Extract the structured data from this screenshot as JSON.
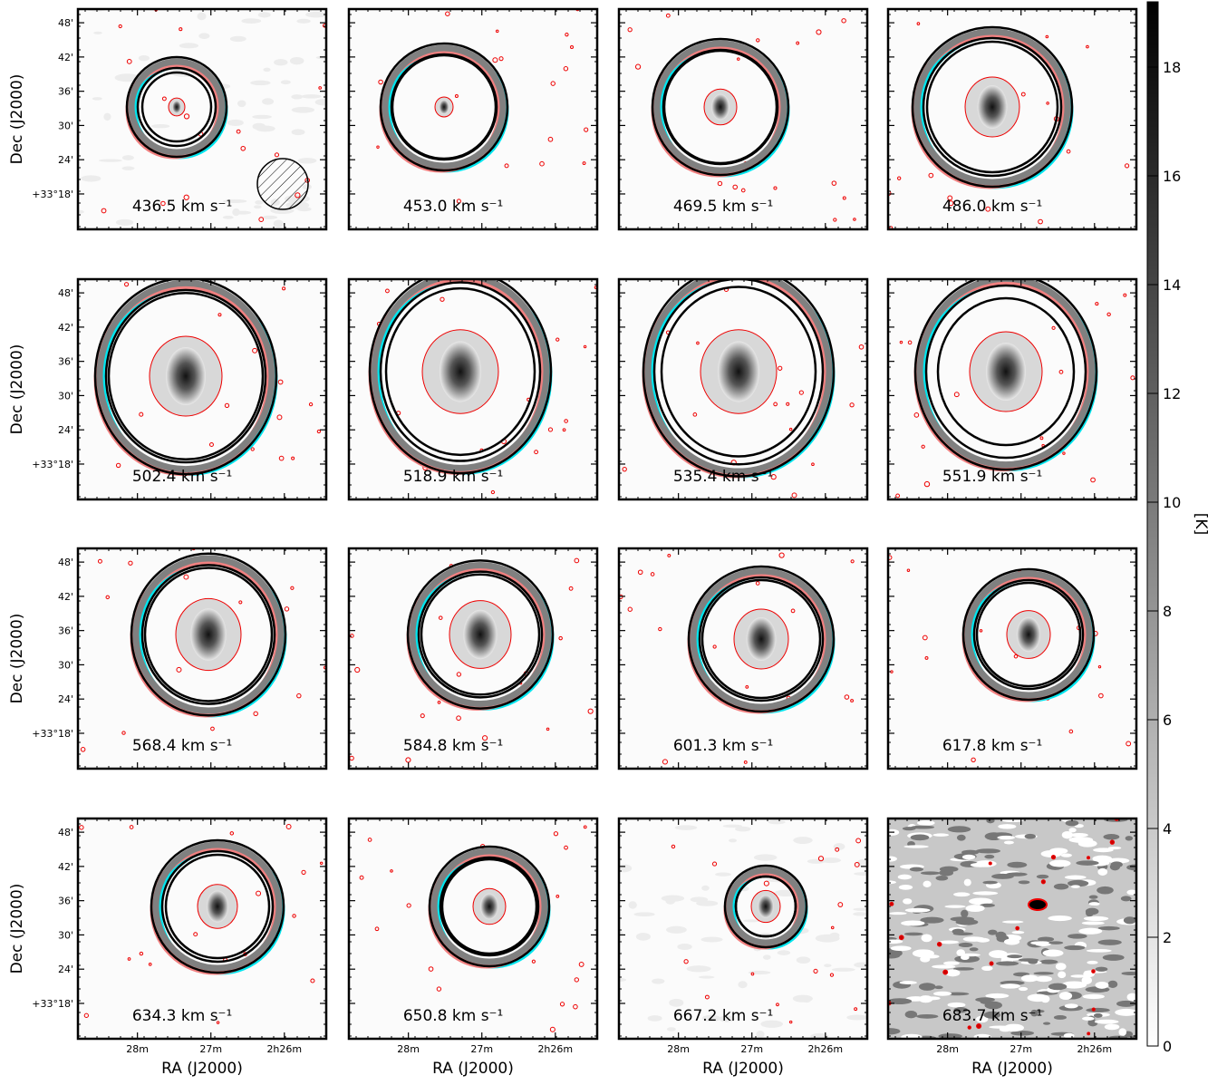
{
  "chart_data": {
    "type": "channel-map",
    "xlabel": "RA (J2000)",
    "ylabel": "Dec (J2000)",
    "xlim": [
      28.81,
      25.43
    ],
    "ylim": [
      11.8,
      50.4
    ],
    "xticks": [
      {
        "value": 28,
        "label": "28m"
      },
      {
        "value": 27,
        "label": "27m"
      },
      {
        "value": 26,
        "label": "2h26m"
      }
    ],
    "yticks": [
      {
        "value": 48,
        "label": "48'"
      },
      {
        "value": 42,
        "label": "42'"
      },
      {
        "value": 36,
        "label": "36'"
      },
      {
        "value": 30,
        "label": "30'"
      },
      {
        "value": 24,
        "label": "24'"
      },
      {
        "value": 18,
        "label": "+33°18'"
      }
    ],
    "panels": [
      "436.5 km s⁻¹",
      "453.0 km s⁻¹",
      "469.5 km s⁻¹",
      "486.0 km s⁻¹",
      "502.4 km s⁻¹",
      "518.9 km s⁻¹",
      "535.4 km s⁻¹",
      "551.9 km s⁻¹",
      "568.4 km s⁻¹",
      "584.8 km s⁻¹",
      "601.3 km s⁻¹",
      "617.8 km s⁻¹",
      "634.3 km s⁻¹",
      "650.8 km s⁻¹",
      "667.2 km s⁻¹",
      "683.7 km s⁻¹"
    ],
    "colorbar": {
      "label": "[K]",
      "lim": [
        0,
        19.2
      ],
      "ticks": [
        0,
        2,
        4,
        6,
        8,
        10,
        12,
        14,
        16,
        18
      ]
    }
  }
}
